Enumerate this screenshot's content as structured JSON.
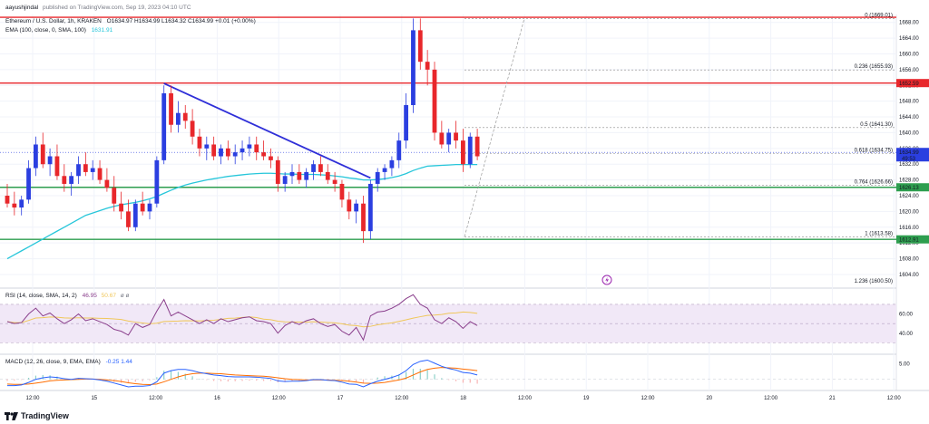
{
  "header": {
    "author": "aayushjindal",
    "published": "published on TradingView.com, Sep 19, 2023 04:10 UTC",
    "symbol": "Ethereum / U.S. Dollar, 1h, KRAKEN",
    "ohlc": "O1634.97  H1634.99  L1634.32  C1634.99  +0.01 (+0.00%)",
    "ema_label": "EMA (100, close, 0, SMA, 100)",
    "ema_value": "1631.91"
  },
  "footer": {
    "brand": "TradingView"
  },
  "colors": {
    "up": "#2b3fe0",
    "down": "#e8272b",
    "ema": "#26c6da",
    "trend": "#2f2fd8",
    "resistance": "#e8272b",
    "support": "#2e9e4f",
    "rsi": "#8a3f8c",
    "rsi_ma": "#f0c75a",
    "macd": "#2962ff",
    "signal": "#ff6d00",
    "hist_pos": "#8bd0c8",
    "hist_neg": "#f7b3b3"
  },
  "chart_data": {
    "type": "candlestick",
    "x_ticks": [
      "12:00",
      "15",
      "12:00",
      "16",
      "12:00",
      "17",
      "12:00",
      "18",
      "12:00",
      "19",
      "12:00",
      "20",
      "12:00",
      "21",
      "12:00"
    ],
    "y_ticks": [
      1604,
      1608,
      1612,
      1616,
      1620,
      1624,
      1628,
      1632,
      1636,
      1640,
      1644,
      1648,
      1652,
      1656,
      1660,
      1664,
      1668
    ],
    "ylim": [
      1601,
      1670
    ],
    "last_price": "1634.99",
    "countdown": "49:53",
    "price_labels": [
      {
        "value": 1652.59,
        "label": "1652.59",
        "kind": "resistance"
      },
      {
        "value": 1626.13,
        "label": "1626.13",
        "kind": "support"
      },
      {
        "value": 1612.91,
        "label": "1612.91",
        "kind": "support"
      }
    ],
    "fibonacci": [
      {
        "ratio": "0",
        "value": 1669.01,
        "label": "0 (1669.01)"
      },
      {
        "ratio": "0.236",
        "value": 1655.93,
        "label": "0.236 (1655.93)"
      },
      {
        "ratio": "0.5",
        "value": 1641.3,
        "label": "0.5 (1641.30)"
      },
      {
        "ratio": "0.618",
        "value": 1634.75,
        "label": "0.618 (1634.75)"
      },
      {
        "ratio": "0.764",
        "value": 1626.66,
        "label": "0.764 (1626.66)"
      },
      {
        "ratio": "1",
        "value": 1613.58,
        "label": "1 (1613.58)"
      },
      {
        "ratio": "1.236",
        "value": 1600.5,
        "label": "1.236 (1600.50)"
      }
    ],
    "candles": [
      [
        1624,
        1627,
        1621,
        1622
      ],
      [
        1622,
        1625,
        1619,
        1621
      ],
      [
        1621,
        1624,
        1619,
        1623
      ],
      [
        1623,
        1633,
        1622,
        1631
      ],
      [
        1631,
        1639,
        1629,
        1637
      ],
      [
        1637,
        1640,
        1631,
        1632
      ],
      [
        1632,
        1636,
        1629,
        1634
      ],
      [
        1634,
        1637,
        1628,
        1629
      ],
      [
        1629,
        1632,
        1625,
        1627
      ],
      [
        1627,
        1630,
        1624,
        1629
      ],
      [
        1629,
        1634,
        1627,
        1632
      ],
      [
        1632,
        1635,
        1629,
        1630
      ],
      [
        1630,
        1633,
        1628,
        1631
      ],
      [
        1631,
        1633,
        1627,
        1628
      ],
      [
        1628,
        1631,
        1625,
        1626
      ],
      [
        1626,
        1629,
        1620,
        1622
      ],
      [
        1622,
        1625,
        1618,
        1620
      ],
      [
        1620,
        1623,
        1615,
        1616
      ],
      [
        1616,
        1623,
        1615,
        1622
      ],
      [
        1622,
        1625,
        1619,
        1620
      ],
      [
        1620,
        1623,
        1618,
        1622
      ],
      [
        1622,
        1634,
        1621,
        1633
      ],
      [
        1633,
        1652,
        1632,
        1650
      ],
      [
        1650,
        1652,
        1640,
        1642
      ],
      [
        1642,
        1648,
        1640,
        1645
      ],
      [
        1645,
        1647,
        1641,
        1643
      ],
      [
        1643,
        1646,
        1637,
        1639
      ],
      [
        1639,
        1641,
        1634,
        1636
      ],
      [
        1636,
        1639,
        1633,
        1637
      ],
      [
        1637,
        1639,
        1633,
        1634
      ],
      [
        1634,
        1637,
        1632,
        1636
      ],
      [
        1636,
        1638,
        1633,
        1634
      ],
      [
        1634,
        1637,
        1632,
        1635
      ],
      [
        1635,
        1638,
        1633,
        1636
      ],
      [
        1636,
        1639,
        1634,
        1637
      ],
      [
        1637,
        1639,
        1633,
        1635
      ],
      [
        1635,
        1638,
        1633,
        1634
      ],
      [
        1634,
        1636,
        1631,
        1633
      ],
      [
        1633,
        1634,
        1625,
        1627
      ],
      [
        1627,
        1630,
        1625,
        1629
      ],
      [
        1629,
        1632,
        1627,
        1630
      ],
      [
        1630,
        1632,
        1627,
        1628
      ],
      [
        1628,
        1631,
        1626,
        1630
      ],
      [
        1630,
        1633,
        1628,
        1632
      ],
      [
        1632,
        1634,
        1629,
        1630
      ],
      [
        1630,
        1632,
        1627,
        1628
      ],
      [
        1628,
        1630,
        1625,
        1627
      ],
      [
        1627,
        1628,
        1621,
        1623
      ],
      [
        1623,
        1625,
        1618,
        1620
      ],
      [
        1620,
        1623,
        1617,
        1622
      ],
      [
        1622,
        1624,
        1612,
        1615
      ],
      [
        1615,
        1628,
        1613,
        1627
      ],
      [
        1627,
        1631,
        1625,
        1630
      ],
      [
        1630,
        1632,
        1628,
        1631
      ],
      [
        1631,
        1634,
        1629,
        1633
      ],
      [
        1633,
        1640,
        1631,
        1638
      ],
      [
        1638,
        1650,
        1636,
        1647
      ],
      [
        1647,
        1669,
        1645,
        1666
      ],
      [
        1666,
        1669,
        1656,
        1658
      ],
      [
        1658,
        1661,
        1652,
        1656
      ],
      [
        1656,
        1658,
        1638,
        1640
      ],
      [
        1640,
        1643,
        1636,
        1637
      ],
      [
        1637,
        1641,
        1635,
        1640
      ],
      [
        1640,
        1643,
        1636,
        1638
      ],
      [
        1638,
        1641,
        1630,
        1632
      ],
      [
        1632,
        1640,
        1631,
        1639
      ],
      [
        1639,
        1641,
        1633,
        1634
      ]
    ],
    "ema": [
      1608,
      1609,
      1610,
      1611,
      1612,
      1613,
      1614,
      1615,
      1616,
      1617,
      1618,
      1619,
      1619.6,
      1620.2,
      1620.8,
      1621.3,
      1621.7,
      1622,
      1622.3,
      1622.7,
      1623.2,
      1623.8,
      1624.6,
      1625.4,
      1626.1,
      1626.7,
      1627.2,
      1627.6,
      1628,
      1628.3,
      1628.6,
      1628.9,
      1629.1,
      1629.3,
      1629.5,
      1629.6,
      1629.7,
      1629.7,
      1629.6,
      1629.5,
      1629.5,
      1629.4,
      1629.4,
      1629.4,
      1629.3,
      1629.2,
      1629,
      1628.8,
      1628.5,
      1628.3,
      1628,
      1628,
      1628.1,
      1628.3,
      1628.6,
      1629,
      1629.6,
      1630.4,
      1631,
      1631.5,
      1631.6,
      1631.7,
      1631.8,
      1631.9,
      1631.9,
      1631.9,
      1631.9
    ],
    "trendline": [
      [
        22,
        1652.5
      ],
      [
        51,
        1628.5
      ]
    ],
    "rsi": {
      "label": "RSI (14, close, SMA, 14, 2)",
      "value": "46.95",
      "ma_value": "50.67",
      "extra": "ø  ø",
      "levels": [
        70,
        50,
        30
      ],
      "axis_labels": [
        "60.00",
        "40.00"
      ],
      "values": [
        52,
        50,
        51,
        60,
        66,
        58,
        61,
        55,
        50,
        54,
        60,
        53,
        55,
        52,
        49,
        44,
        42,
        38,
        50,
        46,
        49,
        63,
        75,
        58,
        62,
        58,
        54,
        50,
        54,
        50,
        55,
        52,
        54,
        56,
        57,
        53,
        52,
        50,
        40,
        48,
        52,
        49,
        53,
        55,
        50,
        47,
        49,
        42,
        38,
        46,
        33,
        58,
        62,
        63,
        66,
        70,
        76,
        80,
        70,
        66,
        54,
        50,
        56,
        52,
        45,
        52,
        48
      ]
    },
    "macd": {
      "label": "MACD (12, 26, close, 9, EMA, EMA)",
      "values_label": "-0.25   1.44",
      "axis_labels": [
        "5.00"
      ],
      "macd": [
        -2,
        -2,
        -1.8,
        -1,
        0,
        0.5,
        0.8,
        0.6,
        0.2,
        0,
        0.3,
        0.2,
        0.1,
        -0.2,
        -0.6,
        -1.2,
        -1.8,
        -2.4,
        -2.2,
        -2.2,
        -2,
        -0.8,
        2,
        2.8,
        3.2,
        3.2,
        2.8,
        2.2,
        1.8,
        1.4,
        1.2,
        0.9,
        0.8,
        0.8,
        0.8,
        0.7,
        0.5,
        0.3,
        -0.5,
        -0.7,
        -0.6,
        -0.6,
        -0.4,
        -0.1,
        -0.1,
        -0.3,
        -0.4,
        -0.9,
        -1.5,
        -1.6,
        -2.4,
        -1.4,
        -0.6,
        0,
        0.6,
        1.4,
        2.8,
        4.8,
        5.8,
        6.2,
        5.2,
        4.2,
        3.5,
        3,
        2.2,
        2,
        1.4
      ],
      "signal": [
        -1.5,
        -1.6,
        -1.6,
        -1.5,
        -1.2,
        -0.9,
        -0.5,
        -0.3,
        -0.2,
        -0.1,
        0,
        0.1,
        0.1,
        0,
        -0.2,
        -0.4,
        -0.7,
        -1.1,
        -1.4,
        -1.6,
        -1.7,
        -1.5,
        -0.8,
        0,
        0.8,
        1.4,
        1.8,
        2,
        2,
        1.9,
        1.8,
        1.6,
        1.4,
        1.3,
        1.2,
        1.1,
        1,
        0.8,
        0.5,
        0.2,
        0,
        -0.1,
        -0.2,
        -0.2,
        -0.2,
        -0.2,
        -0.3,
        -0.4,
        -0.6,
        -0.9,
        -1.2,
        -1.3,
        -1.2,
        -1,
        -0.6,
        -0.2,
        0.4,
        1.4,
        2.4,
        3.2,
        3.6,
        3.8,
        3.7,
        3.6,
        3.3,
        3.1,
        2.8
      ]
    }
  }
}
